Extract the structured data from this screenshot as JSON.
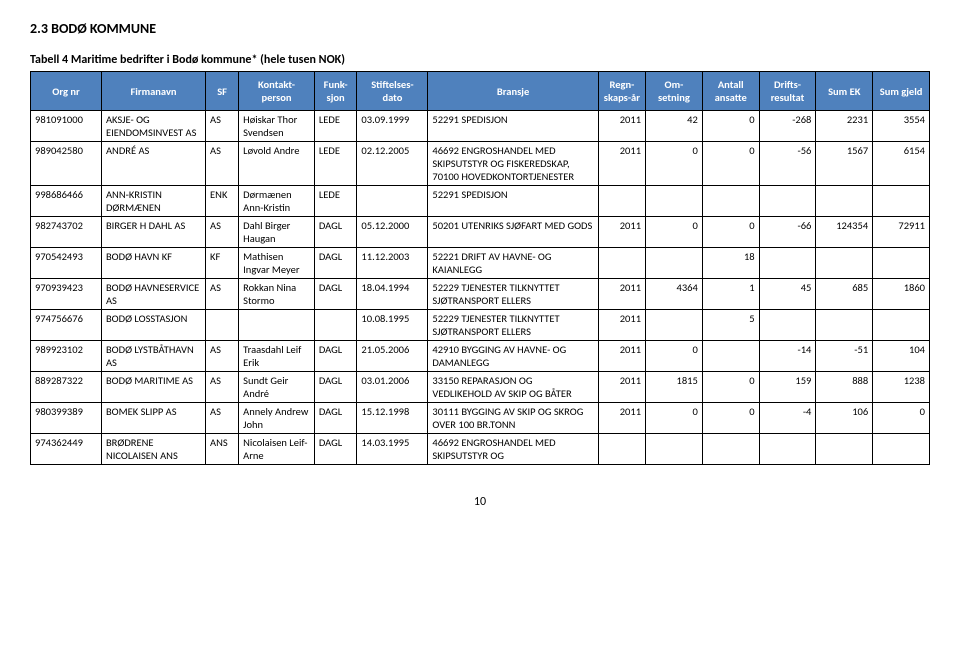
{
  "heading": "2.3  BODØ KOMMUNE",
  "table_caption": "Tabell 4 Maritime bedrifter i Bodø kommune* (hele tusen NOK)",
  "page_number": "10",
  "columns": [
    "Org nr",
    "Firmanavn",
    "SF",
    "Kontakt-person",
    "Funk-sjon",
    "Stiftelses-dato",
    "Bransje",
    "Regn-skaps-år",
    "Om-setning",
    "Antall ansatte",
    "Drifts-resultat",
    "Sum EK",
    "Sum gjeld"
  ],
  "rows": [
    {
      "org": "981091000",
      "firm": "AKSJE- OG EIENDOMSINVEST AS",
      "sf": "AS",
      "kontakt": "Høiskar Thor Svendsen",
      "funk": "LEDE",
      "stift": "03.09.1999",
      "bransje": "52291 SPEDISJON",
      "regn": "2011",
      "oms": "42",
      "ant": "0",
      "drift": "-268",
      "sumek": "2231",
      "sumg": "3554"
    },
    {
      "org": "989042580",
      "firm": "ANDRÉ AS",
      "sf": "AS",
      "kontakt": "Løvold Andre",
      "funk": "LEDE",
      "stift": "02.12.2005",
      "bransje": "46692 ENGROSHANDEL MED SKIPSUTSTYR OG FISKEREDSKAP, 70100 HOVEDKONTORTJENESTER",
      "regn": "2011",
      "oms": "0",
      "ant": "0",
      "drift": "-56",
      "sumek": "1567",
      "sumg": "6154"
    },
    {
      "org": "998686466",
      "firm": "ANN-KRISTIN DØRMÆNEN",
      "sf": "ENK",
      "kontakt": "Dørmænen Ann-Kristin",
      "funk": "LEDE",
      "stift": "",
      "bransje": "52291 SPEDISJON",
      "regn": "",
      "oms": "",
      "ant": "",
      "drift": "",
      "sumek": "",
      "sumg": ""
    },
    {
      "org": "982743702",
      "firm": "BIRGER H DAHL AS",
      "sf": "AS",
      "kontakt": "Dahl Birger Haugan",
      "funk": "DAGL",
      "stift": "05.12.2000",
      "bransje": "50201 UTENRIKS SJØFART MED GODS",
      "regn": "2011",
      "oms": "0",
      "ant": "0",
      "drift": "-66",
      "sumek": "124354",
      "sumg": "72911"
    },
    {
      "org": "970542493",
      "firm": "BODØ HAVN KF",
      "sf": "KF",
      "kontakt": "Mathisen Ingvar Meyer",
      "funk": "DAGL",
      "stift": "11.12.2003",
      "bransje": "52221 DRIFT AV HAVNE- OG KAIANLEGG",
      "regn": "",
      "oms": "",
      "ant": "18",
      "drift": "",
      "sumek": "",
      "sumg": ""
    },
    {
      "org": "970939423",
      "firm": "BODØ HAVNESERVICE AS",
      "sf": "AS",
      "kontakt": "Rokkan Nina Stormo",
      "funk": "DAGL",
      "stift": "18.04.1994",
      "bransje": "52229 TJENESTER TILKNYTTET SJØTRANSPORT ELLERS",
      "regn": "2011",
      "oms": "4364",
      "ant": "1",
      "drift": "45",
      "sumek": "685",
      "sumg": "1860"
    },
    {
      "org": "974756676",
      "firm": "BODØ LOSSTASJON",
      "sf": "",
      "kontakt": "",
      "funk": "",
      "stift": "10.08.1995",
      "bransje": "52229 TJENESTER TILKNYTTET SJØTRANSPORT ELLERS",
      "regn": "2011",
      "oms": "",
      "ant": "5",
      "drift": "",
      "sumek": "",
      "sumg": ""
    },
    {
      "org": "989923102",
      "firm": "BODØ LYSTBÅTHAVN AS",
      "sf": "AS",
      "kontakt": "Traasdahl Leif Erik",
      "funk": "DAGL",
      "stift": "21.05.2006",
      "bransje": "42910 BYGGING AV HAVNE- OG DAMANLEGG",
      "regn": "2011",
      "oms": "0",
      "ant": "",
      "drift": "-14",
      "sumek": "-51",
      "sumg": "104"
    },
    {
      "org": "889287322",
      "firm": "BODØ MARITIME AS",
      "sf": "AS",
      "kontakt": "Sundt Geir André",
      "funk": "DAGL",
      "stift": "03.01.2006",
      "bransje": "33150 REPARASJON OG VEDLIKEHOLD AV SKIP OG BÅTER",
      "regn": "2011",
      "oms": "1815",
      "ant": "0",
      "drift": "159",
      "sumek": "888",
      "sumg": "1238"
    },
    {
      "org": "980399389",
      "firm": "BOMEK SLIPP AS",
      "sf": "AS",
      "kontakt": "Annely Andrew John",
      "funk": "DAGL",
      "stift": "15.12.1998",
      "bransje": "30111 BYGGING AV SKIP OG SKROG OVER 100 BR.TONN",
      "regn": "2011",
      "oms": "0",
      "ant": "0",
      "drift": "-4",
      "sumek": "106",
      "sumg": "0"
    },
    {
      "org": "974362449",
      "firm": "BRØDRENE NICOLAISEN ANS",
      "sf": "ANS",
      "kontakt": "Nicolaisen Leif-Arne",
      "funk": "DAGL",
      "stift": "14.03.1995",
      "bransje": "46692 ENGROSHANDEL MED SKIPSUTSTYR OG",
      "regn": "",
      "oms": "",
      "ant": "",
      "drift": "",
      "sumek": "",
      "sumg": ""
    }
  ]
}
